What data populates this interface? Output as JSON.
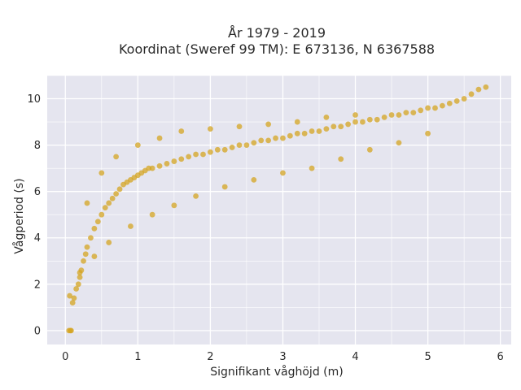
{
  "chart_data": {
    "type": "scatter",
    "title_lines": [
      "År 1979 - 2019",
      "Koordinat (Sweref 99 TM): E 673136, N 6367588"
    ],
    "xlabel": "Signifikant våghöjd (m)",
    "ylabel": "Vågperiod (s)",
    "xlim": [
      -0.25,
      6.15
    ],
    "ylim": [
      -0.6,
      11.0
    ],
    "xticks": [
      0,
      1,
      2,
      3,
      4,
      5,
      6
    ],
    "yticks": [
      0,
      2,
      4,
      6,
      8,
      10
    ],
    "grid": true,
    "legend": "none",
    "colors": {
      "plot_bg": "#e5e5ef",
      "grid": "#ffffff",
      "marker": "#d4a421"
    },
    "series": [
      {
        "marker_opacity": 0.75,
        "x": [
          0.05,
          0.07,
          0.08,
          0.06,
          0.1,
          0.12,
          0.15,
          0.18,
          0.2,
          0.22,
          0.25,
          0.28,
          0.3,
          0.35,
          0.4,
          0.45,
          0.5,
          0.55,
          0.6,
          0.65,
          0.7,
          0.75,
          0.8,
          0.85,
          0.9,
          0.95,
          1.0,
          1.05,
          1.1,
          1.15,
          1.2,
          1.3,
          1.4,
          1.5,
          1.6,
          1.7,
          1.8,
          1.9,
          2.0,
          2.1,
          2.2,
          2.3,
          2.4,
          2.5,
          2.6,
          2.7,
          2.8,
          2.9,
          3.0,
          3.1,
          3.2,
          3.3,
          3.4,
          3.5,
          3.6,
          3.7,
          3.8,
          3.9,
          4.0,
          4.1,
          4.2,
          4.3,
          4.4,
          4.5,
          4.6,
          4.7,
          4.8,
          4.9,
          5.0,
          5.1,
          5.2,
          5.3,
          5.4,
          5.5,
          5.6,
          5.7,
          5.8,
          0.3,
          0.5,
          0.7,
          1.0,
          1.3,
          1.6,
          2.0,
          2.4,
          2.8,
          3.2,
          3.6,
          4.0,
          0.2,
          0.4,
          0.6,
          0.9,
          1.2,
          1.5,
          1.8,
          2.2,
          2.6,
          3.0,
          3.4,
          3.8,
          4.2,
          4.6,
          5.0
        ],
        "y": [
          0.0,
          0.0,
          0.0,
          1.5,
          1.2,
          1.4,
          1.8,
          2.0,
          2.3,
          2.6,
          3.0,
          3.3,
          3.6,
          4.0,
          4.4,
          4.7,
          5.0,
          5.3,
          5.5,
          5.7,
          5.9,
          6.1,
          6.3,
          6.4,
          6.5,
          6.6,
          6.7,
          6.8,
          6.9,
          7.0,
          7.0,
          7.1,
          7.2,
          7.3,
          7.4,
          7.5,
          7.6,
          7.6,
          7.7,
          7.8,
          7.8,
          7.9,
          8.0,
          8.0,
          8.1,
          8.2,
          8.2,
          8.3,
          8.3,
          8.4,
          8.5,
          8.5,
          8.6,
          8.6,
          8.7,
          8.8,
          8.8,
          8.9,
          9.0,
          9.0,
          9.1,
          9.1,
          9.2,
          9.3,
          9.3,
          9.4,
          9.4,
          9.5,
          9.6,
          9.6,
          9.7,
          9.8,
          9.9,
          10.0,
          10.2,
          10.4,
          10.5,
          5.5,
          6.8,
          7.5,
          8.0,
          8.3,
          8.6,
          8.7,
          8.8,
          8.9,
          9.0,
          9.2,
          9.3,
          2.5,
          3.2,
          3.8,
          4.5,
          5.0,
          5.4,
          5.8,
          6.2,
          6.5,
          6.8,
          7.0,
          7.4,
          7.8,
          8.1,
          8.5
        ]
      }
    ]
  }
}
